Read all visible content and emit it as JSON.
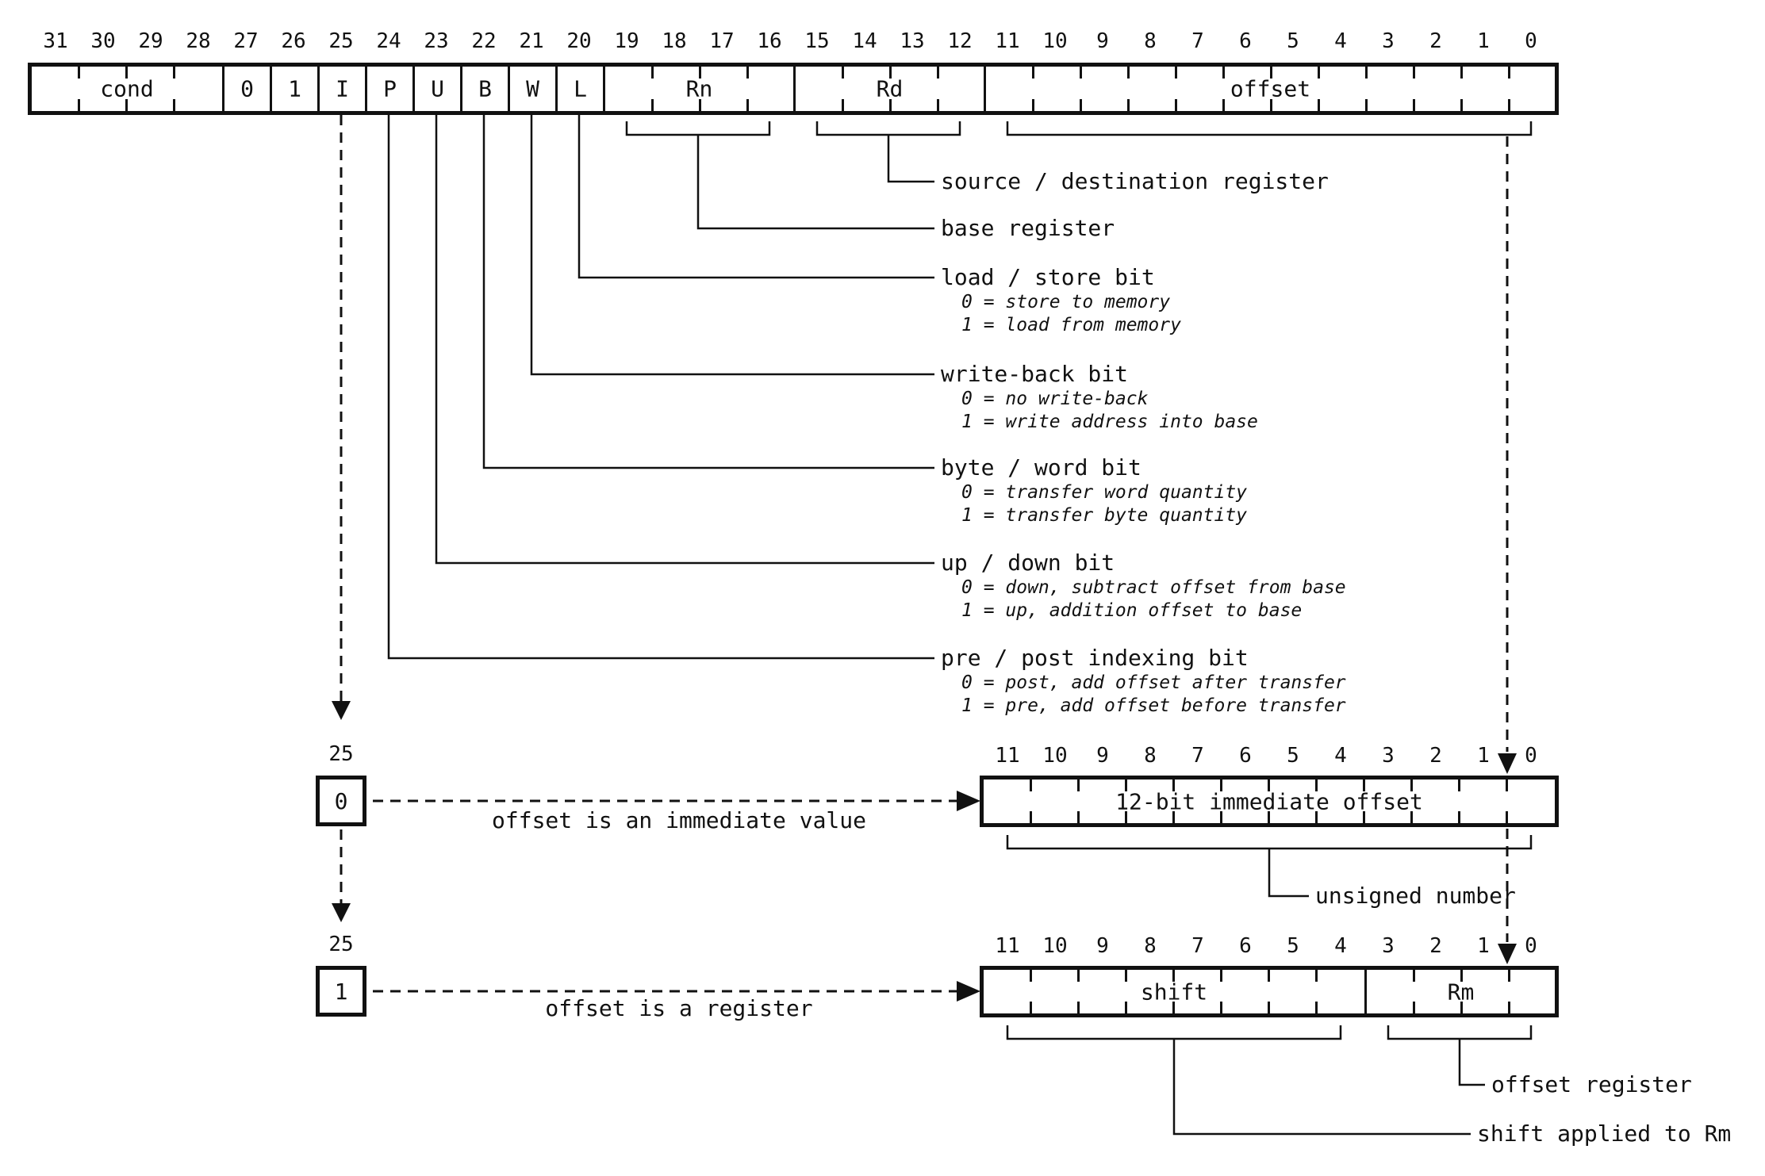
{
  "instruction": {
    "bit_labels": [
      "31",
      "30",
      "29",
      "28",
      "27",
      "26",
      "25",
      "24",
      "23",
      "22",
      "21",
      "20",
      "19",
      "18",
      "17",
      "16",
      "15",
      "14",
      "13",
      "12",
      "11",
      "10",
      "9",
      "8",
      "7",
      "6",
      "5",
      "4",
      "3",
      "2",
      "1",
      "0"
    ],
    "fields": [
      {
        "label": "cond",
        "hi": 31,
        "lo": 28
      },
      {
        "label": "0",
        "hi": 27,
        "lo": 27
      },
      {
        "label": "1",
        "hi": 26,
        "lo": 26
      },
      {
        "label": "I",
        "hi": 25,
        "lo": 25
      },
      {
        "label": "P",
        "hi": 24,
        "lo": 24
      },
      {
        "label": "U",
        "hi": 23,
        "lo": 23
      },
      {
        "label": "B",
        "hi": 22,
        "lo": 22
      },
      {
        "label": "W",
        "hi": 21,
        "lo": 21
      },
      {
        "label": "L",
        "hi": 20,
        "lo": 20
      },
      {
        "label": "Rn",
        "hi": 19,
        "lo": 16
      },
      {
        "label": "Rd",
        "hi": 15,
        "lo": 12
      },
      {
        "label": "offset",
        "hi": 11,
        "lo": 0
      }
    ]
  },
  "annotations": [
    {
      "field": "Rd",
      "title": "source / destination register",
      "details": []
    },
    {
      "field": "Rn",
      "title": "base register",
      "details": []
    },
    {
      "field": "L",
      "title": "load / store bit",
      "details": [
        "0 = store to memory",
        "1 = load from memory"
      ]
    },
    {
      "field": "W",
      "title": "write-back bit",
      "details": [
        "0 = no write-back",
        "1 = write address into base"
      ]
    },
    {
      "field": "B",
      "title": "byte / word bit",
      "details": [
        "0 = transfer word quantity",
        "1 = transfer byte quantity"
      ]
    },
    {
      "field": "U",
      "title": "up / down bit",
      "details": [
        "0 = down, subtract offset from base",
        "1 = up, addition offset to base"
      ]
    },
    {
      "field": "P",
      "title": "pre / post indexing bit",
      "details": [
        "0 = post, add offset after transfer",
        "1 = pre, add offset before transfer"
      ]
    }
  ],
  "immediate_path": {
    "bit_number": "25",
    "bit_value": "0",
    "caption": "offset is an immediate value",
    "box": {
      "bit_labels": [
        "11",
        "10",
        "9",
        "8",
        "7",
        "6",
        "5",
        "4",
        "3",
        "2",
        "1",
        "0"
      ],
      "fields": [
        {
          "label": "12-bit immediate offset",
          "hi": 11,
          "lo": 0
        }
      ]
    },
    "note": "unsigned number"
  },
  "register_path": {
    "bit_number": "25",
    "bit_value": "1",
    "caption": "offset is a register",
    "box": {
      "bit_labels": [
        "11",
        "10",
        "9",
        "8",
        "7",
        "6",
        "5",
        "4",
        "3",
        "2",
        "1",
        "0"
      ],
      "fields": [
        {
          "label": "shift",
          "hi": 11,
          "lo": 4
        },
        {
          "label": "Rm",
          "hi": 3,
          "lo": 0
        }
      ]
    },
    "notes": [
      "offset register",
      "shift applied to Rm"
    ]
  },
  "colors": {
    "ink": "#111111",
    "background": "#ffffff"
  }
}
